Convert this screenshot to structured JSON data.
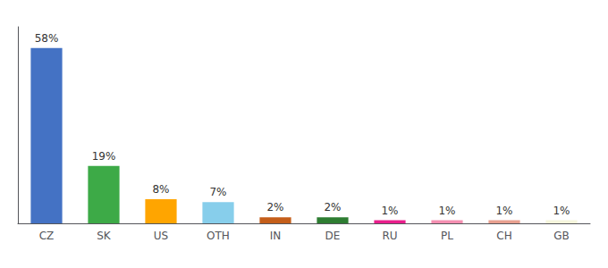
{
  "chart_data": {
    "type": "bar",
    "categories": [
      "CZ",
      "SK",
      "US",
      "OTH",
      "IN",
      "DE",
      "RU",
      "PL",
      "CH",
      "GB"
    ],
    "values": [
      58,
      19,
      8,
      7,
      2,
      2,
      1,
      1,
      1,
      1
    ],
    "value_labels": [
      "58%",
      "19%",
      "8%",
      "7%",
      "2%",
      "2%",
      "1%",
      "1%",
      "1%",
      "1%"
    ],
    "colors": [
      "#4472C4",
      "#3DAA47",
      "#FFA500",
      "#87CEEB",
      "#C45E1A",
      "#2E7D32",
      "#E91E8C",
      "#F48FB1",
      "#E8A090",
      "#F5F5DC"
    ],
    "ylim": [
      0,
      65
    ],
    "grid": false,
    "data_labels": true,
    "tick_labels": "x"
  }
}
